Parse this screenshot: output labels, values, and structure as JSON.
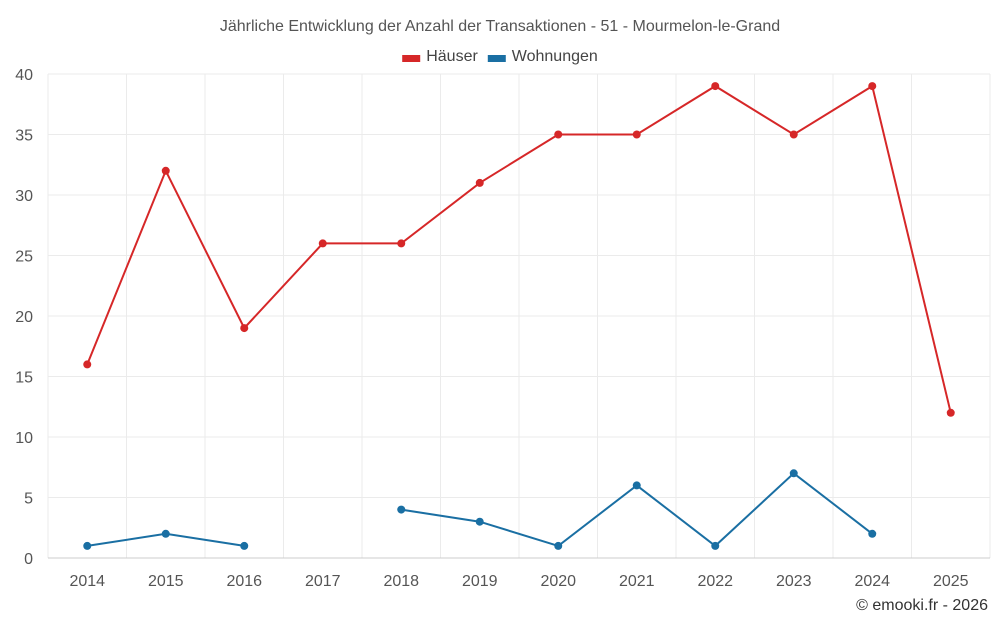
{
  "chart_data": {
    "type": "line",
    "title": "Jährliche Entwicklung der Anzahl der Transaktionen - 51 - Mourmelon-le-Grand",
    "categories": [
      "2014",
      "2015",
      "2016",
      "2017",
      "2018",
      "2019",
      "2020",
      "2021",
      "2022",
      "2023",
      "2024",
      "2025"
    ],
    "series": [
      {
        "name": "Häuser",
        "color": "#d62728",
        "values": [
          16,
          32,
          19,
          26,
          26,
          31,
          35,
          35,
          39,
          35,
          39,
          12
        ]
      },
      {
        "name": "Wohnungen",
        "color": "#1a6fa3",
        "values": [
          1,
          2,
          1,
          null,
          4,
          3,
          1,
          6,
          1,
          7,
          2,
          null
        ]
      }
    ],
    "ylim": [
      0,
      40
    ],
    "yticks": [
      0,
      5,
      10,
      15,
      20,
      25,
      30,
      35,
      40
    ],
    "grid": true,
    "legend": "top-center",
    "xlabel": "",
    "ylabel": ""
  },
  "credit": "© emooki.fr - 2026"
}
